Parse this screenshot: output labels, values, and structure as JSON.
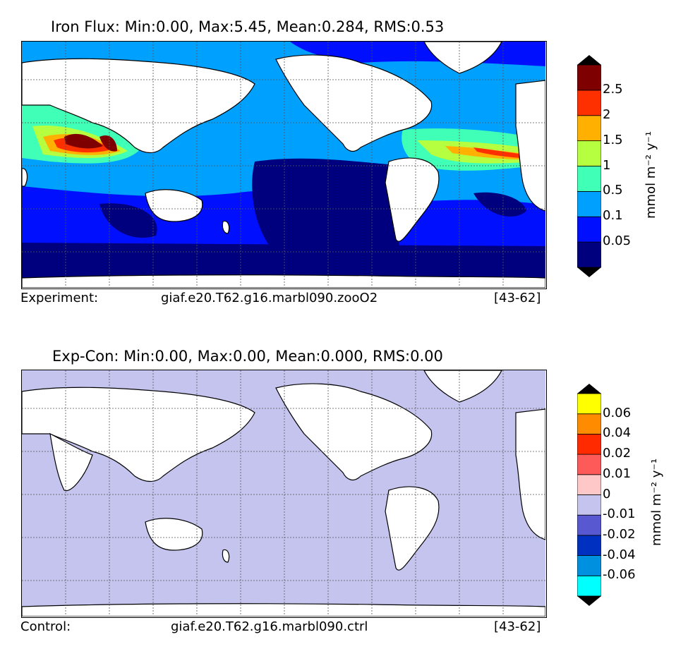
{
  "panels": [
    {
      "title": "Iron Flux: Min:0.00, Max:5.45, Mean:0.284, RMS:0.53",
      "footer_left": "Experiment:",
      "footer_center": "giaf.e20.T62.g16.marbl090.zooO2",
      "footer_right": "[43-62]"
    },
    {
      "title": "Exp-Con: Min:0.00, Max:0.00, Mean:0.000, RMS:0.00",
      "footer_left": "Control:",
      "footer_center": "giaf.e20.T62.g16.marbl090.ctrl",
      "footer_right": "[43-62]"
    }
  ],
  "colorbar_unit": "mmol m⁻² y⁻¹",
  "chart_data": [
    {
      "type": "heatmap",
      "title": "Iron Flux: Min:0.00, Max:5.45, Mean:0.284, RMS:0.53",
      "stats": {
        "min": 0.0,
        "max": 5.45,
        "mean": 0.284,
        "rms": 0.53
      },
      "colorbar": {
        "levels": [
          "0.05",
          "0.1",
          "0.5",
          "1",
          "1.5",
          "2",
          "2.5"
        ],
        "colors": [
          "#00007f",
          "#0010ff",
          "#00a0ff",
          "#40ffb6",
          "#b6ff40",
          "#ffb000",
          "#ff3000",
          "#7f0000"
        ],
        "extend": "both",
        "label": "mmol m⁻² y⁻¹"
      },
      "grid": true
    },
    {
      "type": "heatmap",
      "title": "Exp-Con: Min:0.00, Max:0.00, Mean:0.000, RMS:0.00",
      "stats": {
        "min": 0.0,
        "max": 0.0,
        "mean": 0.0,
        "rms": 0.0
      },
      "colorbar": {
        "levels": [
          "-0.06",
          "-0.04",
          "-0.02",
          "-0.01",
          "0",
          "0.01",
          "0.02",
          "0.04",
          "0.06"
        ],
        "colors": [
          "#00ffff",
          "#0090e0",
          "#0030c0",
          "#5858d0",
          "#c4c4ee",
          "#ffc8c8",
          "#ff5a5a",
          "#ff2a00",
          "#ff8c00",
          "#ffff00"
        ],
        "extend": "both",
        "label": "mmol m⁻² y⁻¹"
      },
      "grid": true
    }
  ]
}
